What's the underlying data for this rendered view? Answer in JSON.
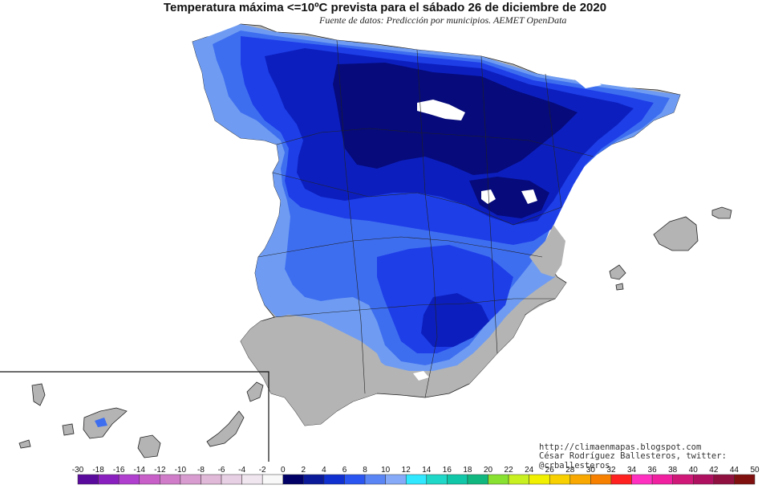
{
  "title": "Temperatura máxima <=10ºC prevista para el sábado 26 de diciembre de 2020",
  "subtitle": "Fuente de datos: Predicción por municipios. AEMET OpenData",
  "credits": {
    "url": "http://climaenmapas.blogspot.com",
    "author": "César Rodríguez Ballesteros, twitter: @crballesteros"
  },
  "legend": {
    "labels": [
      "-30",
      "-18",
      "-16",
      "-14",
      "-12",
      "-10",
      "-8",
      "-6",
      "-4",
      "-2",
      "0",
      "2",
      "4",
      "6",
      "8",
      "10",
      "12",
      "14",
      "16",
      "18",
      "20",
      "22",
      "24",
      "26",
      "28",
      "30",
      "32",
      "34",
      "36",
      "38",
      "40",
      "42",
      "44",
      "50"
    ],
    "colors": [
      "#5b0a9e",
      "#8a1fbf",
      "#b03fd0",
      "#c85ec8",
      "#d07cc8",
      "#d89cd0",
      "#e0b8d8",
      "#e8d0e4",
      "#f0e6f0",
      "#f8f8f8",
      "#000066",
      "#0a1a99",
      "#1030d0",
      "#2a55f0",
      "#5a86f5",
      "#86aaf8",
      "#30e8ff",
      "#20d8c8",
      "#10c8a8",
      "#10b880",
      "#88e030",
      "#c8f020",
      "#f0f000",
      "#f8d000",
      "#f8a800",
      "#f88000",
      "#ff2020",
      "#ff30c0",
      "#f020a0",
      "#d01878",
      "#b01060",
      "#901040",
      "#801010"
    ]
  },
  "map_palette": {
    "sea": "#ffffff",
    "land_above_10": "#b4b4b4",
    "band_8_10": "#6f9cf2",
    "band_6_8": "#3e6ef0",
    "band_4_6": "#1e3ee8",
    "band_2_4": "#0c1fbe",
    "band_0_2": "#060a7a",
    "below_0": "#ffffff",
    "borders": "#222222"
  }
}
